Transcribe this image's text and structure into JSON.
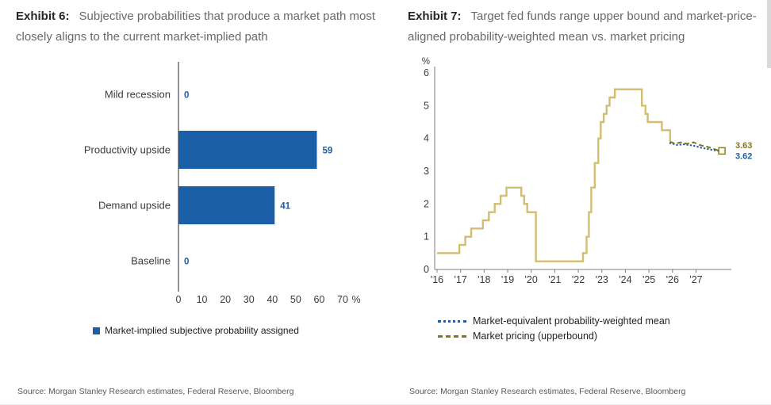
{
  "colors": {
    "blue": "#1b5fa9",
    "tan": "#d3bd70",
    "olive": "#857620",
    "title_gray": "#68696c",
    "text_dark": "#3b3b3b",
    "source_gray": "#595959"
  },
  "left": {
    "exhibit": "Exhibit 6:",
    "title": "Subjective probabilities that produce a market path most closely aligns to the current market-implied path",
    "legend_label": "Market-implied subjective probability assigned",
    "source": "Source: Morgan Stanley Research estimates, Federal Reserve, Bloomberg"
  },
  "right": {
    "exhibit": "Exhibit 7:",
    "title": "Target fed funds range upper bound and market-price-aligned probability-weighted mean vs. market pricing",
    "legend_items": [
      {
        "label": "Market-equivalent probability-weighted mean"
      },
      {
        "label": "Market pricing (upperbound)"
      }
    ],
    "source": "Source: Morgan Stanley Research estimates, Federal Reserve, Bloomberg"
  },
  "chart_data": [
    {
      "type": "bar",
      "orientation": "horizontal",
      "title": "Subjective probabilities that produce a market path most closely aligns to the current market-implied path",
      "categories": [
        "Mild recession",
        "Productivity upside",
        "Demand upside",
        "Baseline"
      ],
      "values": [
        0,
        59,
        41,
        0
      ],
      "xlabel": "%",
      "xlim": [
        0,
        70
      ],
      "xticks": [
        0,
        10,
        20,
        30,
        40,
        50,
        60,
        70
      ],
      "bar_color": "#1b5fa9",
      "value_label_color": "#1b5fa9",
      "legend": [
        "Market-implied subjective probability assigned"
      ]
    },
    {
      "type": "line",
      "title": "Target fed funds range upper bound and market-price-aligned probability-weighted mean vs. market pricing",
      "ylabel": "%",
      "ylim": [
        0,
        6
      ],
      "yticks": [
        0,
        1,
        2,
        3,
        4,
        5,
        6
      ],
      "xlim": [
        2015.9,
        2028.5
      ],
      "xticks": [
        2016,
        2017,
        2018,
        2019,
        2020,
        2021,
        2022,
        2023,
        2024,
        2025,
        2026,
        2027
      ],
      "xtick_labels": [
        "'16",
        "'17",
        "'18",
        "'19",
        "'20",
        "'21",
        "'22",
        "'23",
        "'24",
        "'25",
        "'26",
        "'27"
      ],
      "grid": false,
      "legend_position": "bottom",
      "series": [
        {
          "name": "Target fed funds range upper bound",
          "style": "solid",
          "interpolation": "step",
          "color": "#d3bd70",
          "width": 2.4,
          "points": [
            [
              2016.0,
              0.5
            ],
            [
              2016.95,
              0.75
            ],
            [
              2017.2,
              1.0
            ],
            [
              2017.45,
              1.25
            ],
            [
              2017.95,
              1.5
            ],
            [
              2018.2,
              1.75
            ],
            [
              2018.45,
              2.0
            ],
            [
              2018.7,
              2.25
            ],
            [
              2018.95,
              2.5
            ],
            [
              2019.58,
              2.25
            ],
            [
              2019.7,
              2.0
            ],
            [
              2019.83,
              1.75
            ],
            [
              2020.2,
              0.25
            ],
            [
              2022.2,
              0.5
            ],
            [
              2022.35,
              1.0
            ],
            [
              2022.45,
              1.75
            ],
            [
              2022.55,
              2.5
            ],
            [
              2022.7,
              3.25
            ],
            [
              2022.85,
              4.0
            ],
            [
              2022.95,
              4.5
            ],
            [
              2023.08,
              4.75
            ],
            [
              2023.2,
              5.0
            ],
            [
              2023.33,
              5.25
            ],
            [
              2023.55,
              5.5
            ],
            [
              2024.7,
              5.0
            ],
            [
              2024.85,
              4.75
            ],
            [
              2024.95,
              4.5
            ],
            [
              2025.55,
              4.25
            ],
            [
              2025.9,
              3.9
            ]
          ]
        },
        {
          "name": "Market-equivalent probability-weighted mean",
          "style": "dotted",
          "interpolation": "linear",
          "color": "#1b5fa9",
          "width": 2.2,
          "points": [
            [
              2025.9,
              3.86
            ],
            [
              2026.2,
              3.8
            ],
            [
              2026.5,
              3.82
            ],
            [
              2026.9,
              3.78
            ],
            [
              2027.2,
              3.72
            ],
            [
              2027.6,
              3.66
            ],
            [
              2027.95,
              3.62
            ]
          ]
        },
        {
          "name": "Market pricing (upperbound)",
          "style": "dashed",
          "interpolation": "linear",
          "color": "#857620",
          "width": 2,
          "points": [
            [
              2025.9,
              3.9
            ],
            [
              2026.1,
              3.84
            ],
            [
              2026.35,
              3.88
            ],
            [
              2026.6,
              3.84
            ],
            [
              2026.9,
              3.88
            ],
            [
              2027.15,
              3.8
            ],
            [
              2027.5,
              3.74
            ],
            [
              2027.8,
              3.67
            ],
            [
              2027.95,
              3.63
            ]
          ]
        }
      ],
      "end_labels": [
        {
          "text": "3.63",
          "value": 3.63,
          "color": "#857620"
        },
        {
          "text": "3.62",
          "value": 3.62,
          "color": "#1b5fa9"
        }
      ],
      "end_marker": {
        "x": 2028.1,
        "y": 3.62
      }
    }
  ]
}
